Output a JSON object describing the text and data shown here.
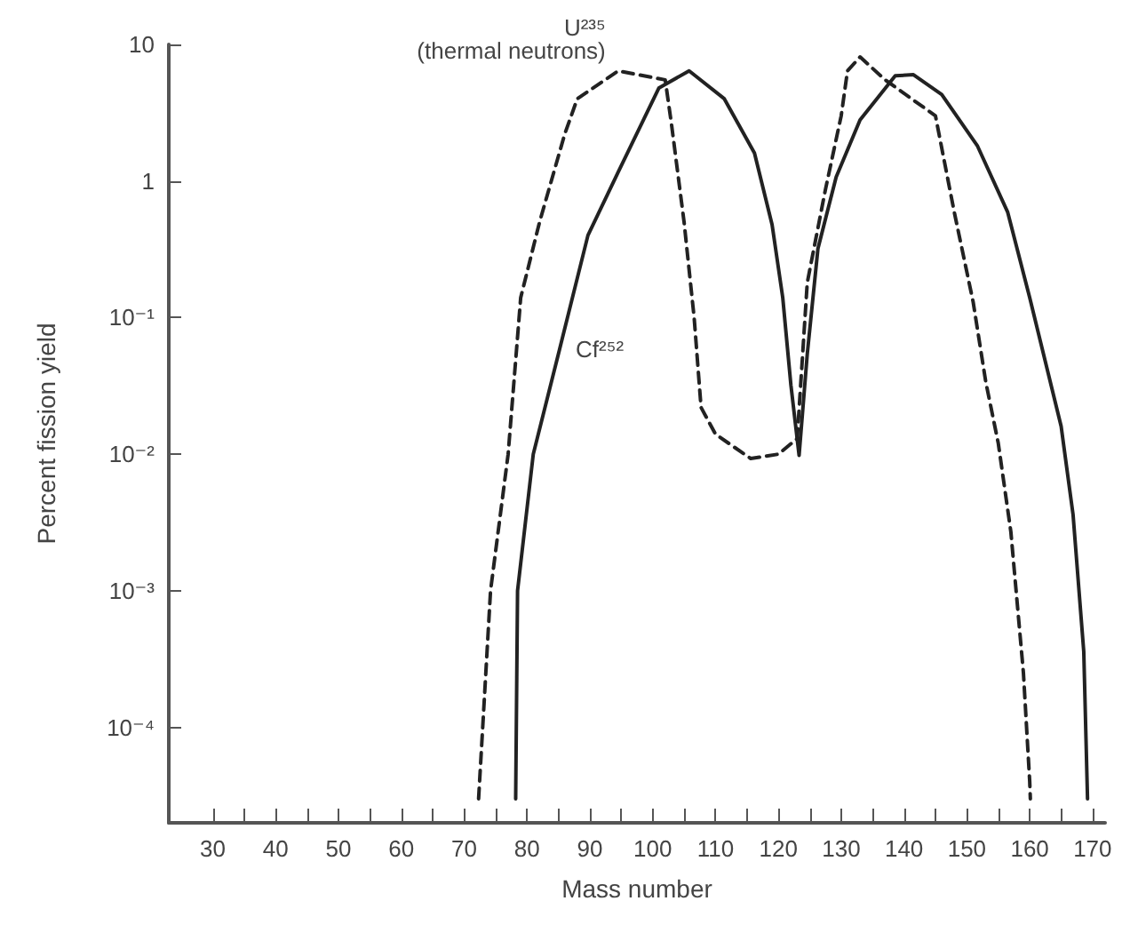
{
  "chart_data": {
    "type": "line",
    "xlabel": "Mass number",
    "ylabel": "Percent fission yield",
    "log": "y",
    "grid": false,
    "legend": false,
    "marker": "none",
    "xlim": [
      23,
      172
    ],
    "xticks": [
      30,
      {
        "value": 35,
        "label": null
      },
      40,
      {
        "value": 45,
        "label": null
      },
      50,
      {
        "value": 55,
        "label": null
      },
      60,
      {
        "value": 65,
        "label": null
      },
      70,
      {
        "value": 75,
        "label": null
      },
      80,
      {
        "value": 85,
        "label": null
      },
      90,
      {
        "value": 95,
        "label": null
      },
      100,
      {
        "value": 105,
        "label": null
      },
      110,
      {
        "value": 115,
        "label": null
      },
      120,
      {
        "value": 125,
        "label": null
      },
      130,
      {
        "value": 135,
        "label": null
      },
      140,
      {
        "value": 145,
        "label": null
      },
      150,
      {
        "value": 155,
        "label": null
      },
      160,
      {
        "value": 165,
        "label": null
      },
      170
    ],
    "ylim": [
      2e-05,
      10
    ],
    "yticks": [
      {
        "value": 0.0001,
        "label": "10⁻⁴"
      },
      {
        "value": 0.001,
        "label": "10⁻³"
      },
      {
        "value": 0.01,
        "label": "10⁻²"
      },
      {
        "value": 0.1,
        "label": "10⁻¹"
      },
      1,
      10
    ],
    "series": [
      {
        "name": "U²³⁵ (thermal neutrons)",
        "color": "#222222",
        "line_style": "dashed",
        "x": [
          72.3,
          74.2,
          77,
          79,
          82,
          86,
          88,
          94.5,
          102,
          103,
          105,
          106.6,
          107.7,
          110,
          115.6,
          120,
          123,
          124.6,
          127.5,
          130,
          131,
          133,
          137,
          145,
          148,
          151,
          153,
          155,
          157,
          159,
          160,
          160.1
        ],
        "values": [
          3e-05,
          0.001,
          0.01,
          0.14,
          0.5,
          2.2,
          4,
          6.4,
          5.5,
          2.6,
          0.5,
          0.1,
          0.022,
          0.014,
          0.0093,
          0.01,
          0.013,
          0.18,
          0.87,
          3,
          6.4,
          8.1,
          5.5,
          3,
          0.59,
          0.13,
          0.034,
          0.012,
          0.0027,
          0.00025,
          4e-05,
          3e-05
        ]
      },
      {
        "name": "Cf²⁵²",
        "color": "#222222",
        "line_style": "solid",
        "x": [
          78.2,
          78.5,
          81,
          85.2,
          89.7,
          94.5,
          101,
          105.8,
          111.4,
          116.2,
          119,
          120.7,
          122,
          123.3,
          124.6,
          126.3,
          129.2,
          133,
          138.6,
          141.5,
          146,
          151.7,
          156.5,
          160,
          165,
          166.9,
          168.6,
          169.2
        ],
        "values": [
          3e-05,
          0.001,
          0.01,
          0.059,
          0.4,
          1.16,
          4.8,
          6.4,
          4,
          1.6,
          0.48,
          0.14,
          0.032,
          0.0098,
          0.054,
          0.32,
          1.07,
          2.8,
          5.9,
          6,
          4.3,
          1.8,
          0.59,
          0.14,
          0.016,
          0.0036,
          0.00036,
          3e-05
        ]
      }
    ]
  }
}
